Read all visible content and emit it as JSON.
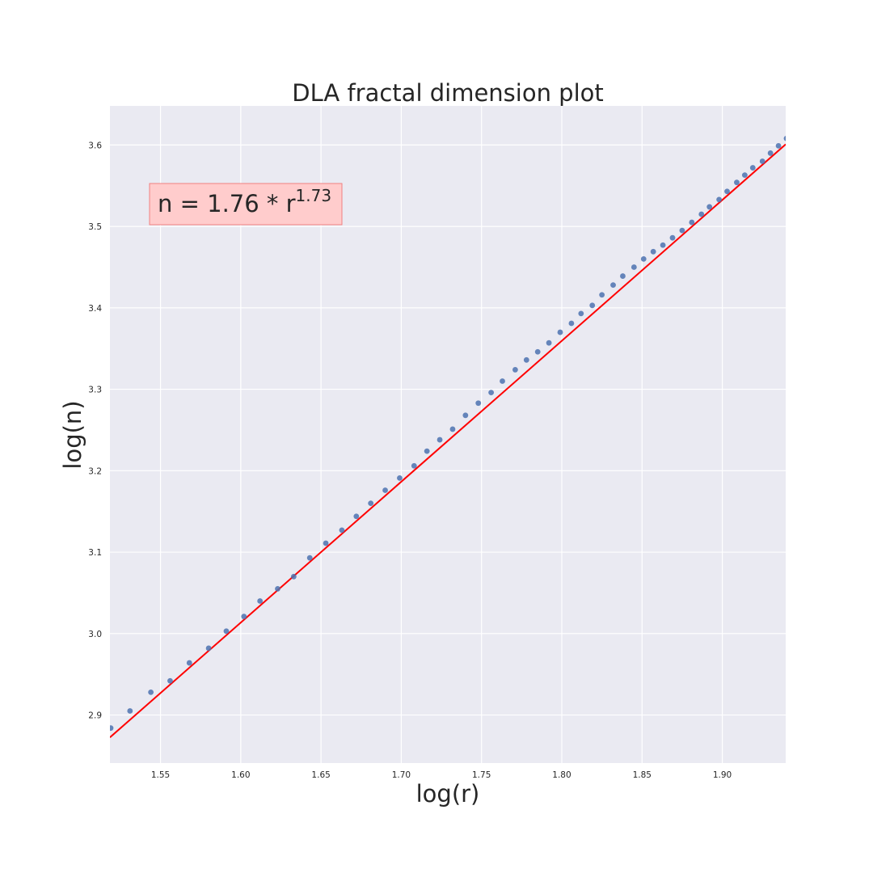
{
  "chart_data": {
    "type": "scatter",
    "title": "DLA fractal dimension plot",
    "xlabel": "log(r)",
    "ylabel": "log(n)",
    "xlim": [
      1.5185,
      1.9395
    ],
    "ylim": [
      2.841,
      3.648
    ],
    "grid": true,
    "x_ticks": [
      1.55,
      1.6,
      1.65,
      1.7,
      1.75,
      1.8,
      1.85,
      1.9
    ],
    "x_tick_labels": [
      "1.55",
      "1.60",
      "1.65",
      "1.70",
      "1.75",
      "1.80",
      "1.85",
      "1.90"
    ],
    "y_ticks": [
      2.9,
      3.0,
      3.1,
      3.2,
      3.3,
      3.4,
      3.5,
      3.6
    ],
    "y_tick_labels": [
      "2.9",
      "3.0",
      "3.1",
      "3.2",
      "3.3",
      "3.4",
      "3.5",
      "3.6"
    ],
    "annotation": {
      "prefix": "n = 1.76 * r",
      "exponent": "1.73"
    },
    "fit": {
      "slope": 1.73,
      "intercept": 0.2455,
      "color": "#ff0000"
    },
    "points_color": "#4c72b0",
    "points": [
      [
        1.519,
        2.884
      ],
      [
        1.531,
        2.905
      ],
      [
        1.544,
        2.928
      ],
      [
        1.556,
        2.942
      ],
      [
        1.568,
        2.964
      ],
      [
        1.58,
        2.982
      ],
      [
        1.591,
        3.003
      ],
      [
        1.602,
        3.021
      ],
      [
        1.612,
        3.04
      ],
      [
        1.623,
        3.055
      ],
      [
        1.633,
        3.07
      ],
      [
        1.643,
        3.093
      ],
      [
        1.653,
        3.111
      ],
      [
        1.663,
        3.127
      ],
      [
        1.672,
        3.144
      ],
      [
        1.681,
        3.16
      ],
      [
        1.69,
        3.176
      ],
      [
        1.699,
        3.191
      ],
      [
        1.708,
        3.206
      ],
      [
        1.716,
        3.224
      ],
      [
        1.724,
        3.238
      ],
      [
        1.732,
        3.251
      ],
      [
        1.74,
        3.268
      ],
      [
        1.748,
        3.283
      ],
      [
        1.756,
        3.296
      ],
      [
        1.763,
        3.31
      ],
      [
        1.771,
        3.324
      ],
      [
        1.778,
        3.336
      ],
      [
        1.785,
        3.346
      ],
      [
        1.792,
        3.357
      ],
      [
        1.799,
        3.37
      ],
      [
        1.806,
        3.381
      ],
      [
        1.812,
        3.393
      ],
      [
        1.819,
        3.403
      ],
      [
        1.825,
        3.416
      ],
      [
        1.832,
        3.428
      ],
      [
        1.838,
        3.439
      ],
      [
        1.845,
        3.45
      ],
      [
        1.851,
        3.46
      ],
      [
        1.857,
        3.469
      ],
      [
        1.863,
        3.477
      ],
      [
        1.869,
        3.486
      ],
      [
        1.875,
        3.495
      ],
      [
        1.881,
        3.505
      ],
      [
        1.887,
        3.515
      ],
      [
        1.892,
        3.524
      ],
      [
        1.898,
        3.533
      ],
      [
        1.903,
        3.543
      ],
      [
        1.909,
        3.554
      ],
      [
        1.914,
        3.563
      ],
      [
        1.919,
        3.572
      ],
      [
        1.925,
        3.58
      ],
      [
        1.93,
        3.59
      ],
      [
        1.935,
        3.599
      ],
      [
        1.94,
        3.608
      ]
    ]
  }
}
